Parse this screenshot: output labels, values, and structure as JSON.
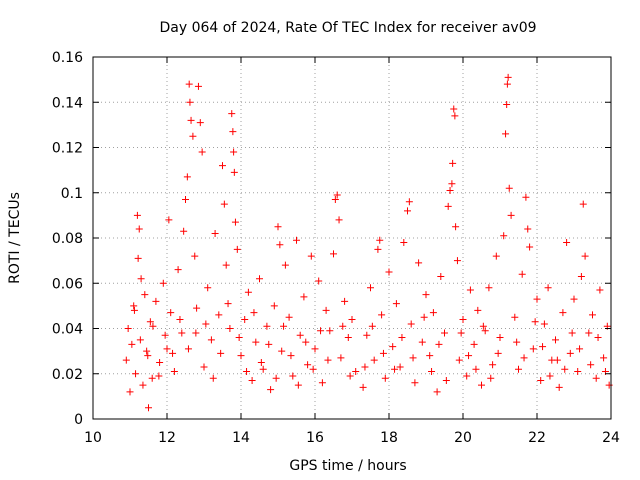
{
  "chart_data": {
    "type": "scatter",
    "title": "Day 064 of 2024, Rate Of TEC Index for receiver av09",
    "xlabel": "GPS time / hours",
    "ylabel": "ROTI / TECUs",
    "xlim": [
      10,
      24
    ],
    "ylim": [
      0,
      0.16
    ],
    "x_ticks": [
      "10",
      "12",
      "14",
      "16",
      "18",
      "20",
      "22",
      "24"
    ],
    "y_ticks": [
      "0",
      "0.02",
      "0.04",
      "0.06",
      "0.08",
      "0.1",
      "0.12",
      "0.14",
      "0.16"
    ],
    "grid": true,
    "marker": "+",
    "series": [
      {
        "name": "av09 ROTI",
        "color": "#ff0000",
        "points": [
          [
            10.9,
            0.026
          ],
          [
            10.95,
            0.04
          ],
          [
            11.0,
            0.012
          ],
          [
            11.05,
            0.033
          ],
          [
            11.1,
            0.05
          ],
          [
            11.15,
            0.02
          ],
          [
            11.2,
            0.09
          ],
          [
            11.22,
            0.071
          ],
          [
            11.25,
            0.084
          ],
          [
            11.3,
            0.062
          ],
          [
            11.35,
            0.015
          ],
          [
            11.4,
            0.055
          ],
          [
            11.45,
            0.03
          ],
          [
            11.5,
            0.005
          ],
          [
            11.55,
            0.043
          ],
          [
            11.6,
            0.018
          ],
          [
            11.7,
            0.052
          ],
          [
            11.8,
            0.025
          ],
          [
            11.9,
            0.06
          ],
          [
            12.0,
            0.031
          ],
          [
            12.05,
            0.088
          ],
          [
            12.1,
            0.047
          ],
          [
            12.2,
            0.021
          ],
          [
            12.3,
            0.066
          ],
          [
            12.4,
            0.038
          ],
          [
            12.45,
            0.083
          ],
          [
            12.5,
            0.097
          ],
          [
            12.55,
            0.107
          ],
          [
            12.6,
            0.148
          ],
          [
            12.62,
            0.14
          ],
          [
            12.65,
            0.132
          ],
          [
            12.7,
            0.125
          ],
          [
            12.75,
            0.072
          ],
          [
            12.8,
            0.049
          ],
          [
            12.85,
            0.147
          ],
          [
            12.9,
            0.131
          ],
          [
            12.95,
            0.118
          ],
          [
            13.0,
            0.023
          ],
          [
            13.1,
            0.058
          ],
          [
            13.2,
            0.035
          ],
          [
            13.3,
            0.082
          ],
          [
            13.4,
            0.046
          ],
          [
            13.5,
            0.112
          ],
          [
            13.55,
            0.095
          ],
          [
            13.6,
            0.068
          ],
          [
            13.7,
            0.04
          ],
          [
            13.75,
            0.135
          ],
          [
            13.78,
            0.127
          ],
          [
            13.8,
            0.118
          ],
          [
            13.82,
            0.109
          ],
          [
            13.85,
            0.087
          ],
          [
            13.9,
            0.075
          ],
          [
            14.0,
            0.028
          ],
          [
            14.1,
            0.044
          ],
          [
            14.2,
            0.056
          ],
          [
            14.3,
            0.017
          ],
          [
            14.4,
            0.034
          ],
          [
            14.5,
            0.062
          ],
          [
            14.6,
            0.022
          ],
          [
            14.7,
            0.041
          ],
          [
            14.8,
            0.013
          ],
          [
            14.9,
            0.05
          ],
          [
            15.0,
            0.085
          ],
          [
            15.05,
            0.077
          ],
          [
            15.1,
            0.03
          ],
          [
            15.2,
            0.068
          ],
          [
            15.3,
            0.045
          ],
          [
            15.4,
            0.019
          ],
          [
            15.5,
            0.079
          ],
          [
            15.6,
            0.037
          ],
          [
            15.7,
            0.054
          ],
          [
            15.8,
            0.024
          ],
          [
            15.9,
            0.072
          ],
          [
            16.0,
            0.031
          ],
          [
            16.1,
            0.061
          ],
          [
            16.2,
            0.016
          ],
          [
            16.3,
            0.048
          ],
          [
            16.4,
            0.039
          ],
          [
            16.5,
            0.073
          ],
          [
            16.55,
            0.097
          ],
          [
            16.6,
            0.099
          ],
          [
            16.65,
            0.088
          ],
          [
            16.7,
            0.027
          ],
          [
            16.8,
            0.052
          ],
          [
            16.9,
            0.036
          ],
          [
            17.0,
            0.044
          ],
          [
            17.1,
            0.021
          ],
          [
            17.3,
            0.014
          ],
          [
            17.4,
            0.037
          ],
          [
            17.5,
            0.058
          ],
          [
            17.6,
            0.026
          ],
          [
            17.7,
            0.075
          ],
          [
            17.75,
            0.079
          ],
          [
            17.8,
            0.046
          ],
          [
            17.9,
            0.018
          ],
          [
            18.0,
            0.065
          ],
          [
            18.1,
            0.032
          ],
          [
            18.2,
            0.051
          ],
          [
            18.3,
            0.023
          ],
          [
            18.4,
            0.078
          ],
          [
            18.5,
            0.092
          ],
          [
            18.55,
            0.096
          ],
          [
            18.6,
            0.042
          ],
          [
            18.7,
            0.016
          ],
          [
            18.8,
            0.069
          ],
          [
            18.9,
            0.034
          ],
          [
            19.0,
            0.055
          ],
          [
            19.1,
            0.028
          ],
          [
            19.2,
            0.047
          ],
          [
            19.3,
            0.012
          ],
          [
            19.4,
            0.063
          ],
          [
            19.5,
            0.038
          ],
          [
            19.6,
            0.094
          ],
          [
            19.65,
            0.101
          ],
          [
            19.7,
            0.104
          ],
          [
            19.72,
            0.113
          ],
          [
            19.75,
            0.137
          ],
          [
            19.78,
            0.134
          ],
          [
            19.8,
            0.085
          ],
          [
            19.85,
            0.07
          ],
          [
            19.9,
            0.026
          ],
          [
            20.0,
            0.044
          ],
          [
            20.1,
            0.019
          ],
          [
            20.2,
            0.057
          ],
          [
            20.3,
            0.033
          ],
          [
            20.4,
            0.048
          ],
          [
            20.5,
            0.015
          ],
          [
            20.6,
            0.039
          ],
          [
            20.7,
            0.058
          ],
          [
            20.8,
            0.024
          ],
          [
            20.9,
            0.072
          ],
          [
            21.0,
            0.036
          ],
          [
            21.1,
            0.081
          ],
          [
            21.15,
            0.126
          ],
          [
            21.18,
            0.139
          ],
          [
            21.2,
            0.148
          ],
          [
            21.22,
            0.151
          ],
          [
            21.25,
            0.102
          ],
          [
            21.3,
            0.09
          ],
          [
            21.4,
            0.045
          ],
          [
            21.5,
            0.022
          ],
          [
            21.6,
            0.064
          ],
          [
            21.7,
            0.098
          ],
          [
            21.75,
            0.084
          ],
          [
            21.8,
            0.076
          ],
          [
            21.9,
            0.031
          ],
          [
            22.0,
            0.053
          ],
          [
            22.1,
            0.017
          ],
          [
            22.2,
            0.042
          ],
          [
            22.3,
            0.058
          ],
          [
            22.4,
            0.026
          ],
          [
            22.5,
            0.035
          ],
          [
            22.6,
            0.014
          ],
          [
            22.7,
            0.047
          ],
          [
            22.8,
            0.078
          ],
          [
            22.9,
            0.029
          ],
          [
            23.0,
            0.053
          ],
          [
            23.1,
            0.021
          ],
          [
            23.2,
            0.063
          ],
          [
            23.25,
            0.095
          ],
          [
            23.3,
            0.072
          ],
          [
            23.4,
            0.038
          ],
          [
            23.5,
            0.046
          ],
          [
            23.6,
            0.018
          ],
          [
            23.7,
            0.057
          ],
          [
            23.8,
            0.027
          ],
          [
            23.9,
            0.041
          ],
          [
            23.95,
            0.015
          ],
          [
            11.12,
            0.048
          ],
          [
            11.28,
            0.035
          ],
          [
            11.48,
            0.028
          ],
          [
            11.62,
            0.041
          ],
          [
            11.78,
            0.019
          ],
          [
            11.95,
            0.037
          ],
          [
            12.15,
            0.029
          ],
          [
            12.35,
            0.044
          ],
          [
            12.58,
            0.031
          ],
          [
            12.78,
            0.038
          ],
          [
            13.05,
            0.042
          ],
          [
            13.25,
            0.018
          ],
          [
            13.45,
            0.029
          ],
          [
            13.65,
            0.051
          ],
          [
            13.95,
            0.036
          ],
          [
            14.15,
            0.021
          ],
          [
            14.35,
            0.047
          ],
          [
            14.55,
            0.025
          ],
          [
            14.75,
            0.033
          ],
          [
            14.95,
            0.018
          ],
          [
            15.15,
            0.041
          ],
          [
            15.35,
            0.028
          ],
          [
            15.55,
            0.015
          ],
          [
            15.75,
            0.034
          ],
          [
            15.95,
            0.022
          ],
          [
            16.15,
            0.039
          ],
          [
            16.35,
            0.026
          ],
          [
            16.75,
            0.041
          ],
          [
            16.95,
            0.019
          ],
          [
            17.35,
            0.023
          ],
          [
            17.55,
            0.041
          ],
          [
            17.85,
            0.029
          ],
          [
            18.15,
            0.022
          ],
          [
            18.35,
            0.036
          ],
          [
            18.65,
            0.027
          ],
          [
            18.95,
            0.045
          ],
          [
            19.15,
            0.021
          ],
          [
            19.35,
            0.033
          ],
          [
            19.55,
            0.017
          ],
          [
            19.95,
            0.038
          ],
          [
            20.15,
            0.028
          ],
          [
            20.35,
            0.022
          ],
          [
            20.55,
            0.041
          ],
          [
            20.75,
            0.018
          ],
          [
            20.95,
            0.029
          ],
          [
            21.45,
            0.034
          ],
          [
            21.65,
            0.027
          ],
          [
            21.95,
            0.043
          ],
          [
            22.15,
            0.032
          ],
          [
            22.35,
            0.019
          ],
          [
            22.55,
            0.026
          ],
          [
            22.75,
            0.022
          ],
          [
            22.95,
            0.038
          ],
          [
            23.15,
            0.031
          ],
          [
            23.45,
            0.024
          ],
          [
            23.65,
            0.036
          ],
          [
            23.85,
            0.021
          ]
        ]
      }
    ]
  }
}
